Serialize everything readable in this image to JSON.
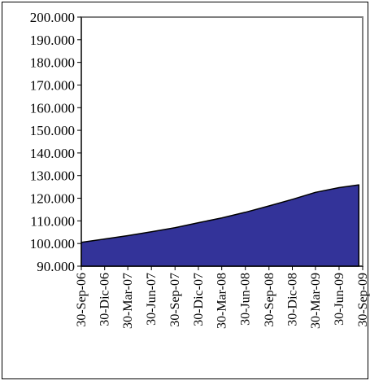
{
  "chart_data": {
    "type": "area",
    "title": "",
    "xlabel": "",
    "ylabel": "",
    "ylim": [
      90000,
      200000
    ],
    "ytick_values": [
      90000,
      100000,
      110000,
      120000,
      130000,
      140000,
      150000,
      160000,
      170000,
      180000,
      190000,
      200000
    ],
    "ytick_labels": [
      "90.000",
      "100.000",
      "110.000",
      "120.000",
      "130.000",
      "140.000",
      "150.000",
      "160.000",
      "170.000",
      "180.000",
      "190.000",
      "200.000"
    ],
    "xlim": [
      "2006-09-30",
      "2009-09-30"
    ],
    "xtick_values": [
      "2006-09-30",
      "2006-12-30",
      "2007-03-30",
      "2007-06-30",
      "2007-09-30",
      "2007-12-30",
      "2008-03-30",
      "2008-06-30",
      "2008-09-30",
      "2008-12-30",
      "2009-03-30",
      "2009-06-30",
      "2009-09-30"
    ],
    "xtick_labels": [
      "30-Sep-06",
      "30-Dic-06",
      "30-Mar-07",
      "30-Jun-07",
      "30-Sep-07",
      "30-Dic-07",
      "30-Mar-08",
      "30-Jun-08",
      "30-Sep-08",
      "30-Dic-08",
      "30-Mar-09",
      "30-Jun-09",
      "30-Sep-09"
    ],
    "grid": false,
    "legend": "none",
    "series": [
      {
        "color": "#333399",
        "x": [
          "2006-09-30",
          "2006-12-30",
          "2007-03-30",
          "2007-06-30",
          "2007-09-30",
          "2007-12-30",
          "2008-03-30",
          "2008-06-30",
          "2008-09-30",
          "2008-12-30",
          "2009-03-30",
          "2009-06-30",
          "2009-09-15"
        ],
        "values": [
          100500,
          102000,
          103500,
          105200,
          107000,
          109200,
          111300,
          113800,
          116600,
          119500,
          122600,
          124700,
          125900
        ]
      }
    ]
  }
}
